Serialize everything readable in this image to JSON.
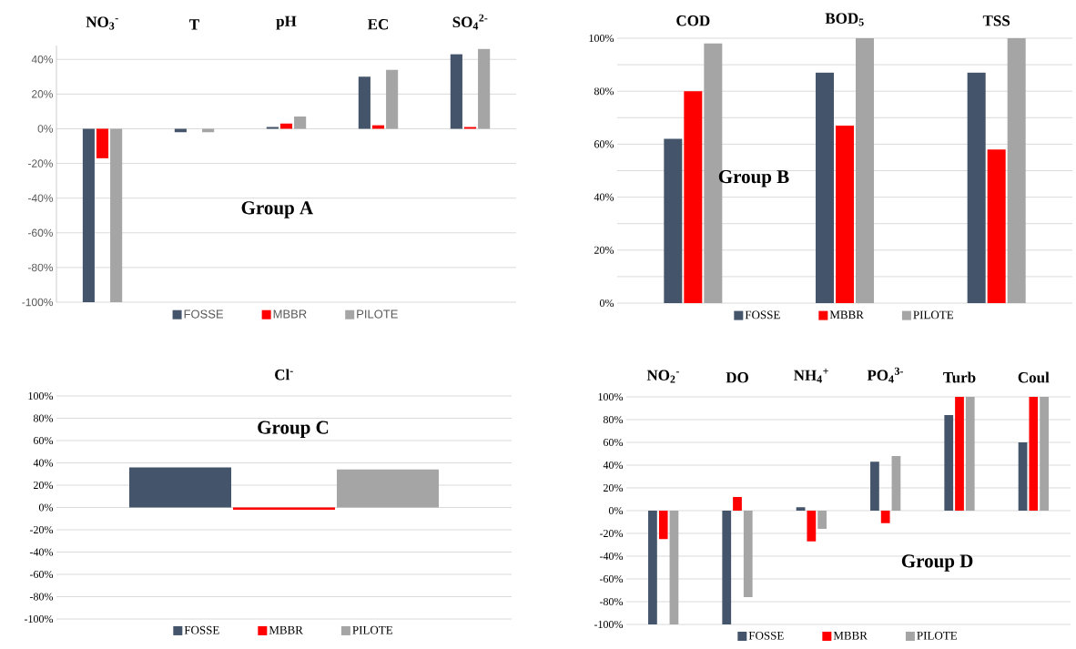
{
  "chart_data": [
    {
      "type": "bar",
      "categories": [
        "NO$_{3}$$^{-}$",
        "T",
        "pH",
        "EC",
        "SO$_{4}$$^{2-}$"
      ],
      "series": [
        {
          "name": "FOSSE",
          "color": "#44546a",
          "values": [
            -100,
            -2,
            1,
            30,
            43
          ]
        },
        {
          "name": "MBBR",
          "color": "#ff0000",
          "values": [
            -17,
            0,
            3,
            2,
            1
          ]
        },
        {
          "name": "PILOTE",
          "color": "#a5a5a5",
          "values": [
            -100,
            -2,
            7,
            34,
            46
          ]
        }
      ],
      "ylim": [
        -100,
        48
      ],
      "yticks": [
        {
          "value": -100,
          "label": "-100%"
        },
        {
          "value": -80,
          "label": "-80%"
        },
        {
          "value": -60,
          "label": "-60%"
        },
        {
          "value": -40,
          "label": "-40%"
        },
        {
          "value": -20,
          "label": "-20%"
        },
        {
          "value": 0,
          "label": "0%"
        },
        {
          "value": 20,
          "label": "20%"
        },
        {
          "value": 40,
          "label": "40%"
        }
      ],
      "grid": "y",
      "legend": "bottom",
      "annotations": [
        "Group A"
      ]
    },
    {
      "type": "bar",
      "categories": [
        "COD",
        "BOD$_{5}$",
        "TSS"
      ],
      "series": [
        {
          "name": "FOSSE",
          "color": "#44546a",
          "values": [
            62,
            87,
            87
          ]
        },
        {
          "name": "MBBR",
          "color": "#ff0000",
          "values": [
            80,
            67,
            58
          ]
        },
        {
          "name": "PILOTE",
          "color": "#a5a5a5",
          "values": [
            98,
            100,
            100
          ]
        }
      ],
      "ylim": [
        0,
        100
      ],
      "yticks": [
        {
          "value": 0,
          "label": "0%"
        },
        {
          "value": 10,
          "label": null
        },
        {
          "value": 20,
          "label": "20%"
        },
        {
          "value": 30,
          "label": null
        },
        {
          "value": 40,
          "label": "40%"
        },
        {
          "value": 50,
          "label": null
        },
        {
          "value": 60,
          "label": "60%"
        },
        {
          "value": 70,
          "label": null
        },
        {
          "value": 80,
          "label": "80%"
        },
        {
          "value": 90,
          "label": null
        },
        {
          "value": 100,
          "label": "100%"
        }
      ],
      "grid": "y",
      "legend": "bottom",
      "annotations": [
        "Group B"
      ]
    },
    {
      "type": "bar",
      "categories": [
        "Cl$^{-}$"
      ],
      "series": [
        {
          "name": "FOSSE",
          "color": "#44546a",
          "values": [
            36
          ]
        },
        {
          "name": "MBBR",
          "color": "#ff0000",
          "values": [
            -2
          ]
        },
        {
          "name": "PILOTE",
          "color": "#a5a5a5",
          "values": [
            34
          ]
        }
      ],
      "ylim": [
        -100,
        100
      ],
      "yticks": [
        {
          "value": -100,
          "label": "-100%"
        },
        {
          "value": -80,
          "label": "-80%"
        },
        {
          "value": -60,
          "label": "-60%"
        },
        {
          "value": -40,
          "label": "-40%"
        },
        {
          "value": -20,
          "label": "-20%"
        },
        {
          "value": 0,
          "label": "0%"
        },
        {
          "value": 20,
          "label": "20%"
        },
        {
          "value": 40,
          "label": "40%"
        },
        {
          "value": 60,
          "label": "60%"
        },
        {
          "value": 80,
          "label": "80%"
        },
        {
          "value": 100,
          "label": "100%"
        }
      ],
      "grid": "y",
      "legend": "bottom",
      "annotations": [
        "Group C"
      ]
    },
    {
      "type": "bar",
      "categories": [
        "NO$_{2}$$^{-}$",
        "DO",
        "NH$_{4}$$^{+}$",
        "PO$_{4}$$^{3-}$",
        "Turb",
        "Coul"
      ],
      "series": [
        {
          "name": "FOSSE",
          "color": "#44546a",
          "values": [
            -100,
            -100,
            3,
            43,
            84,
            60
          ]
        },
        {
          "name": "MBBR",
          "color": "#ff0000",
          "values": [
            -25,
            12,
            -27,
            -11,
            100,
            100
          ]
        },
        {
          "name": "PILOTE",
          "color": "#a5a5a5",
          "values": [
            -100,
            -76,
            -16,
            48,
            100,
            100
          ]
        }
      ],
      "ylim": [
        -100,
        100
      ],
      "yticks": [
        {
          "value": -100,
          "label": "-100%"
        },
        {
          "value": -80,
          "label": "-80%"
        },
        {
          "value": -60,
          "label": "-60%"
        },
        {
          "value": -40,
          "label": "-40%"
        },
        {
          "value": -20,
          "label": "-20%"
        },
        {
          "value": 0,
          "label": "0%"
        },
        {
          "value": 20,
          "label": "20%"
        },
        {
          "value": 40,
          "label": "40%"
        },
        {
          "value": 60,
          "label": "60%"
        },
        {
          "value": 80,
          "label": "80%"
        },
        {
          "value": 100,
          "label": "100%"
        }
      ],
      "grid": "y",
      "legend": "bottom",
      "annotations": [
        "Group D"
      ]
    }
  ]
}
